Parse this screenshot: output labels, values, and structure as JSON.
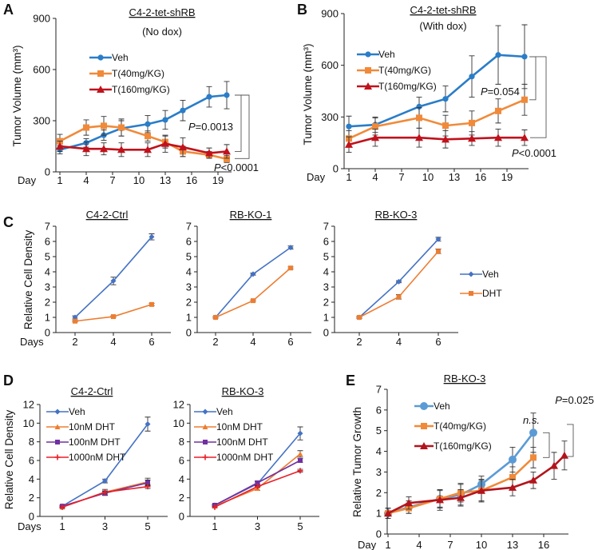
{
  "chart_data": [
    {
      "id": "A",
      "panel_label": "A",
      "type": "line",
      "title": "C4-2-tet-shRB",
      "subtitle": "(No dox)",
      "xlabel": "Day",
      "ylabel": "Tumor Volume (mm³)",
      "ylim": [
        0,
        900
      ],
      "yticks": [
        0,
        300,
        600,
        900
      ],
      "xticks": [
        1,
        4,
        7,
        10,
        13,
        16,
        19
      ],
      "grid": false,
      "legend_position": "top-left",
      "series": [
        {
          "name": "Veh",
          "color": "#2a7dc8",
          "marker": "circle",
          "x": [
            1,
            4,
            6,
            8,
            11,
            13,
            15,
            18,
            20
          ],
          "y": [
            130,
            170,
            215,
            255,
            280,
            305,
            360,
            440,
            450
          ],
          "err": [
            25,
            25,
            30,
            45,
            50,
            55,
            60,
            60,
            80
          ]
        },
        {
          "name": "T(40mg/KG)",
          "color": "#f08a3a",
          "marker": "square",
          "x": [
            1,
            4,
            6,
            8,
            11,
            13,
            15,
            18,
            20
          ],
          "y": [
            180,
            260,
            270,
            260,
            210,
            175,
            120,
            100,
            75
          ],
          "err": [
            40,
            45,
            55,
            50,
            30,
            35,
            30,
            20,
            20
          ]
        },
        {
          "name": "T(160mg/KG)",
          "color": "#c0121c",
          "marker": "triangle",
          "x": [
            1,
            4,
            6,
            8,
            11,
            13,
            15,
            18,
            20
          ],
          "y": [
            150,
            135,
            135,
            130,
            130,
            165,
            145,
            110,
            120
          ],
          "err": [
            30,
            40,
            35,
            40,
            40,
            50,
            55,
            30,
            40
          ]
        }
      ],
      "annotations": [
        {
          "italic": "P",
          "text": "=0.0013"
        },
        {
          "italic": "P",
          "text": "<0.0001"
        }
      ]
    },
    {
      "id": "B",
      "panel_label": "B",
      "type": "line",
      "title": "C4-2-tet-shRB",
      "subtitle": "(With dox)",
      "xlabel": "Day",
      "ylabel": "Tumor Volume (mm³)",
      "ylim": [
        0,
        900
      ],
      "yticks": [
        0,
        300,
        600,
        900
      ],
      "xticks": [
        1,
        4,
        7,
        10,
        13,
        16,
        19
      ],
      "grid": false,
      "legend_position": "top-left",
      "series": [
        {
          "name": "Veh",
          "color": "#2a7dc8",
          "marker": "circle",
          "x": [
            1,
            4,
            9,
            12,
            15,
            18,
            21
          ],
          "y": [
            245,
            255,
            360,
            405,
            535,
            660,
            650
          ],
          "err": [
            60,
            45,
            55,
            75,
            120,
            170,
            185
          ]
        },
        {
          "name": "T(40mg/KG)",
          "color": "#f08a3a",
          "marker": "square",
          "x": [
            1,
            4,
            9,
            12,
            15,
            18,
            21
          ],
          "y": [
            175,
            245,
            295,
            250,
            265,
            335,
            400
          ],
          "err": [
            45,
            50,
            60,
            60,
            70,
            70,
            90
          ]
        },
        {
          "name": "T(160mg/KG)",
          "color": "#c0121c",
          "marker": "triangle",
          "x": [
            1,
            4,
            9,
            12,
            15,
            18,
            21
          ],
          "y": [
            140,
            180,
            180,
            170,
            175,
            180,
            180
          ],
          "err": [
            45,
            50,
            55,
            50,
            40,
            50,
            45
          ]
        }
      ],
      "annotations": [
        {
          "italic": "P",
          "text": "=0.054"
        },
        {
          "italic": "P",
          "text": "<0.0001"
        }
      ]
    },
    {
      "id": "C1",
      "panel_label": "C",
      "type": "line",
      "title": "C4-2-Ctrl",
      "xlabel": "Days",
      "ylabel": "Relative Cell Density",
      "ylim": [
        0,
        7
      ],
      "yticks": [
        0,
        1,
        2,
        3,
        4,
        5,
        6,
        7
      ],
      "xticks": [
        2,
        4,
        6
      ],
      "grid": false,
      "series": [
        {
          "name": "Veh",
          "color": "#4472c4",
          "marker": "diamond",
          "x": [
            2,
            4,
            6
          ],
          "y": [
            1.0,
            3.4,
            6.3
          ],
          "err": [
            0.1,
            0.25,
            0.2
          ]
        },
        {
          "name": "DHT",
          "color": "#ed7d31",
          "marker": "square-small",
          "x": [
            2,
            4,
            6
          ],
          "y": [
            0.75,
            1.05,
            1.85
          ],
          "err": [
            0.05,
            0.05,
            0.08
          ]
        }
      ]
    },
    {
      "id": "C2",
      "panel_label": "",
      "type": "line",
      "title": "RB-KO-1",
      "xlabel": "",
      "ylabel": "",
      "ylim": [
        0,
        7
      ],
      "yticks": [
        0,
        1,
        2,
        3,
        4,
        5,
        6,
        7
      ],
      "xticks": [
        2,
        4,
        6
      ],
      "grid": false,
      "series": [
        {
          "name": "Veh",
          "color": "#4472c4",
          "marker": "diamond",
          "x": [
            2,
            4,
            6
          ],
          "y": [
            1.0,
            3.85,
            5.6
          ],
          "err": [
            0.05,
            0.07,
            0.1
          ]
        },
        {
          "name": "DHT",
          "color": "#ed7d31",
          "marker": "square-small",
          "x": [
            2,
            4,
            6
          ],
          "y": [
            1.0,
            2.1,
            4.25
          ],
          "err": [
            0.05,
            0.05,
            0.07
          ]
        }
      ]
    },
    {
      "id": "C3",
      "panel_label": "",
      "type": "line",
      "title": "RB-KO-3",
      "xlabel": "",
      "ylabel": "",
      "legend_position": "right",
      "ylim": [
        0,
        7
      ],
      "yticks": [
        0,
        1,
        2,
        3,
        4,
        5,
        6,
        7
      ],
      "xticks": [
        2,
        4,
        6
      ],
      "grid": false,
      "series": [
        {
          "name": "Veh",
          "color": "#4472c4",
          "marker": "diamond",
          "x": [
            2,
            4,
            6
          ],
          "y": [
            1.0,
            3.35,
            6.15
          ],
          "err": [
            0.05,
            0.07,
            0.12
          ]
        },
        {
          "name": "DHT",
          "color": "#ed7d31",
          "marker": "square-small",
          "x": [
            2,
            4,
            6
          ],
          "y": [
            1.0,
            2.35,
            5.35
          ],
          "err": [
            0.07,
            0.15,
            0.15
          ]
        }
      ]
    },
    {
      "id": "D1",
      "panel_label": "D",
      "type": "line",
      "title": "C4-2-Ctrl",
      "xlabel": "Days",
      "ylabel": "Relative Cell Density",
      "ylim": [
        0,
        12
      ],
      "yticks": [
        0,
        2,
        4,
        6,
        8,
        10,
        12
      ],
      "xticks": [
        1,
        3,
        5
      ],
      "grid": false,
      "legend_position": "top-left",
      "series": [
        {
          "name": "Veh",
          "color": "#4472c4",
          "marker": "diamond",
          "x": [
            1,
            3,
            5
          ],
          "y": [
            1.1,
            3.8,
            9.9
          ],
          "err": [
            0.1,
            0.2,
            0.75
          ]
        },
        {
          "name": "10nM DHT",
          "color": "#ed7d31",
          "marker": "triangle-small",
          "x": [
            1,
            3,
            5
          ],
          "y": [
            1.0,
            2.6,
            3.7
          ],
          "err": [
            0.1,
            0.3,
            0.4
          ]
        },
        {
          "name": "100nM DHT",
          "color": "#7030a0",
          "marker": "square-small",
          "x": [
            1,
            3,
            5
          ],
          "y": [
            1.1,
            2.5,
            3.6
          ],
          "err": [
            0.1,
            0.25,
            0.3
          ]
        },
        {
          "name": "1000nM DHT",
          "color": "#e8202a",
          "marker": "plus",
          "x": [
            1,
            3,
            5
          ],
          "y": [
            1.0,
            2.6,
            3.2
          ],
          "err": [
            0.05,
            0.1,
            0.2
          ]
        }
      ]
    },
    {
      "id": "D2",
      "panel_label": "",
      "type": "line",
      "title": "RB-KO-3",
      "xlabel": "",
      "ylabel": "",
      "ylim": [
        0,
        12
      ],
      "yticks": [
        0,
        2,
        4,
        6,
        8,
        10,
        12
      ],
      "xticks": [
        1,
        3,
        5
      ],
      "grid": false,
      "legend_position": "top-left",
      "series": [
        {
          "name": "Veh",
          "color": "#4472c4",
          "marker": "diamond",
          "x": [
            1,
            3,
            5
          ],
          "y": [
            1.2,
            3.5,
            8.9
          ],
          "err": [
            0.1,
            0.2,
            0.7
          ]
        },
        {
          "name": "10nM DHT",
          "color": "#ed7d31",
          "marker": "triangle-small",
          "x": [
            1,
            3,
            5
          ],
          "y": [
            1.1,
            3.0,
            6.7
          ],
          "err": [
            0.1,
            0.2,
            0.35
          ]
        },
        {
          "name": "100nM DHT",
          "color": "#7030a0",
          "marker": "square-small",
          "x": [
            1,
            3,
            5
          ],
          "y": [
            1.2,
            3.6,
            6.0
          ],
          "err": [
            0.1,
            0.2,
            0.2
          ]
        },
        {
          "name": "1000nM DHT",
          "color": "#e8202a",
          "marker": "plus",
          "x": [
            1,
            3,
            5
          ],
          "y": [
            1.0,
            3.2,
            4.9
          ],
          "err": [
            0.05,
            0.1,
            0.15
          ]
        }
      ]
    },
    {
      "id": "E",
      "panel_label": "E",
      "type": "line",
      "title": "RB-KO-3",
      "xlabel": "Day",
      "ylabel": "Relative Tumor Growth",
      "ylim": [
        0,
        7
      ],
      "yticks": [
        0,
        1,
        2,
        3,
        4,
        5,
        6,
        7
      ],
      "xticks": [
        1,
        4,
        7,
        10,
        13,
        16
      ],
      "grid": false,
      "legend_position": "top-left",
      "series": [
        {
          "name": "Veh",
          "color": "#5b9bd5",
          "marker": "circle-big",
          "x": [
            1,
            3,
            6,
            8,
            10,
            13,
            15
          ],
          "y": [
            1.0,
            1.3,
            1.7,
            1.9,
            2.4,
            3.6,
            4.9
          ],
          "err": [
            0.25,
            0.3,
            0.45,
            0.5,
            0.4,
            0.6,
            0.95
          ]
        },
        {
          "name": "T(40mg/KG)",
          "color": "#f08a3a",
          "marker": "square",
          "x": [
            1,
            3,
            6,
            8,
            10,
            13,
            15
          ],
          "y": [
            1.0,
            1.25,
            1.7,
            2.0,
            2.1,
            2.75,
            3.7
          ],
          "err": [
            0.25,
            0.25,
            0.4,
            0.45,
            0.55,
            0.5,
            0.5
          ]
        },
        {
          "name": "T(160mg/KG)",
          "color": "#b3141c",
          "marker": "triangle",
          "x": [
            1,
            3,
            6,
            8,
            10,
            13,
            15,
            17,
            18
          ],
          "y": [
            1.0,
            1.5,
            1.65,
            1.75,
            2.1,
            2.25,
            2.6,
            3.3,
            3.8
          ],
          "err": [
            0.25,
            0.3,
            0.5,
            0.4,
            0.5,
            0.4,
            0.4,
            0.65,
            0.7
          ]
        }
      ],
      "annotations": [
        {
          "italic": "n.s.",
          "text": ""
        },
        {
          "italic": "P",
          "text": "=0.025"
        }
      ]
    }
  ]
}
